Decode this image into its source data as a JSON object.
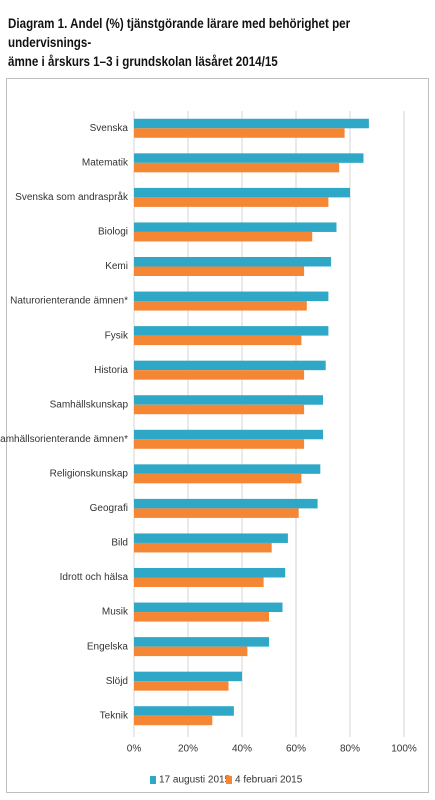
{
  "chart_data": {
    "type": "bar",
    "orientation": "horizontal",
    "title": "Diagram 1. Andel (%) tjänstgörande lärare med behörighet per undervisnings-ämne i årskurs 1–3 i grundskolan läsåret 2014/15",
    "title_lines": [
      "Diagram 1. Andel (%) tjänstgörande lärare med behörighet per undervisnings-",
      "ämne i årskurs 1–3 i grundskolan läsåret 2014/15"
    ],
    "categories": [
      "Svenska",
      "Matematik",
      "Svenska som andraspråk",
      "Biologi",
      "Kemi",
      "Naturorienterande ämnen*",
      "Fysik",
      "Historia",
      "Samhällskunskap",
      "Samhällsorienterande ämnen*",
      "Religionskunskap",
      "Geografi",
      "Bild",
      "Idrott och hälsa",
      "Musik",
      "Engelska",
      "Slöjd",
      "Teknik"
    ],
    "series": [
      {
        "name": "17 augusti 2015",
        "color": "#2fa8c8",
        "values": [
          87,
          85,
          80,
          75,
          73,
          72,
          72,
          71,
          70,
          70,
          69,
          68,
          57,
          56,
          55,
          50,
          40,
          37
        ]
      },
      {
        "name": "4 februari 2015",
        "color": "#f58634",
        "values": [
          78,
          76,
          72,
          66,
          63,
          64,
          62,
          63,
          63,
          63,
          62,
          61,
          51,
          48,
          50,
          42,
          35,
          29
        ]
      }
    ],
    "x_ticks": [
      "0%",
      "20%",
      "40%",
      "60%",
      "80%",
      "100%"
    ],
    "xlim": [
      0,
      100
    ],
    "grid": true,
    "legend_position": "bottom"
  }
}
